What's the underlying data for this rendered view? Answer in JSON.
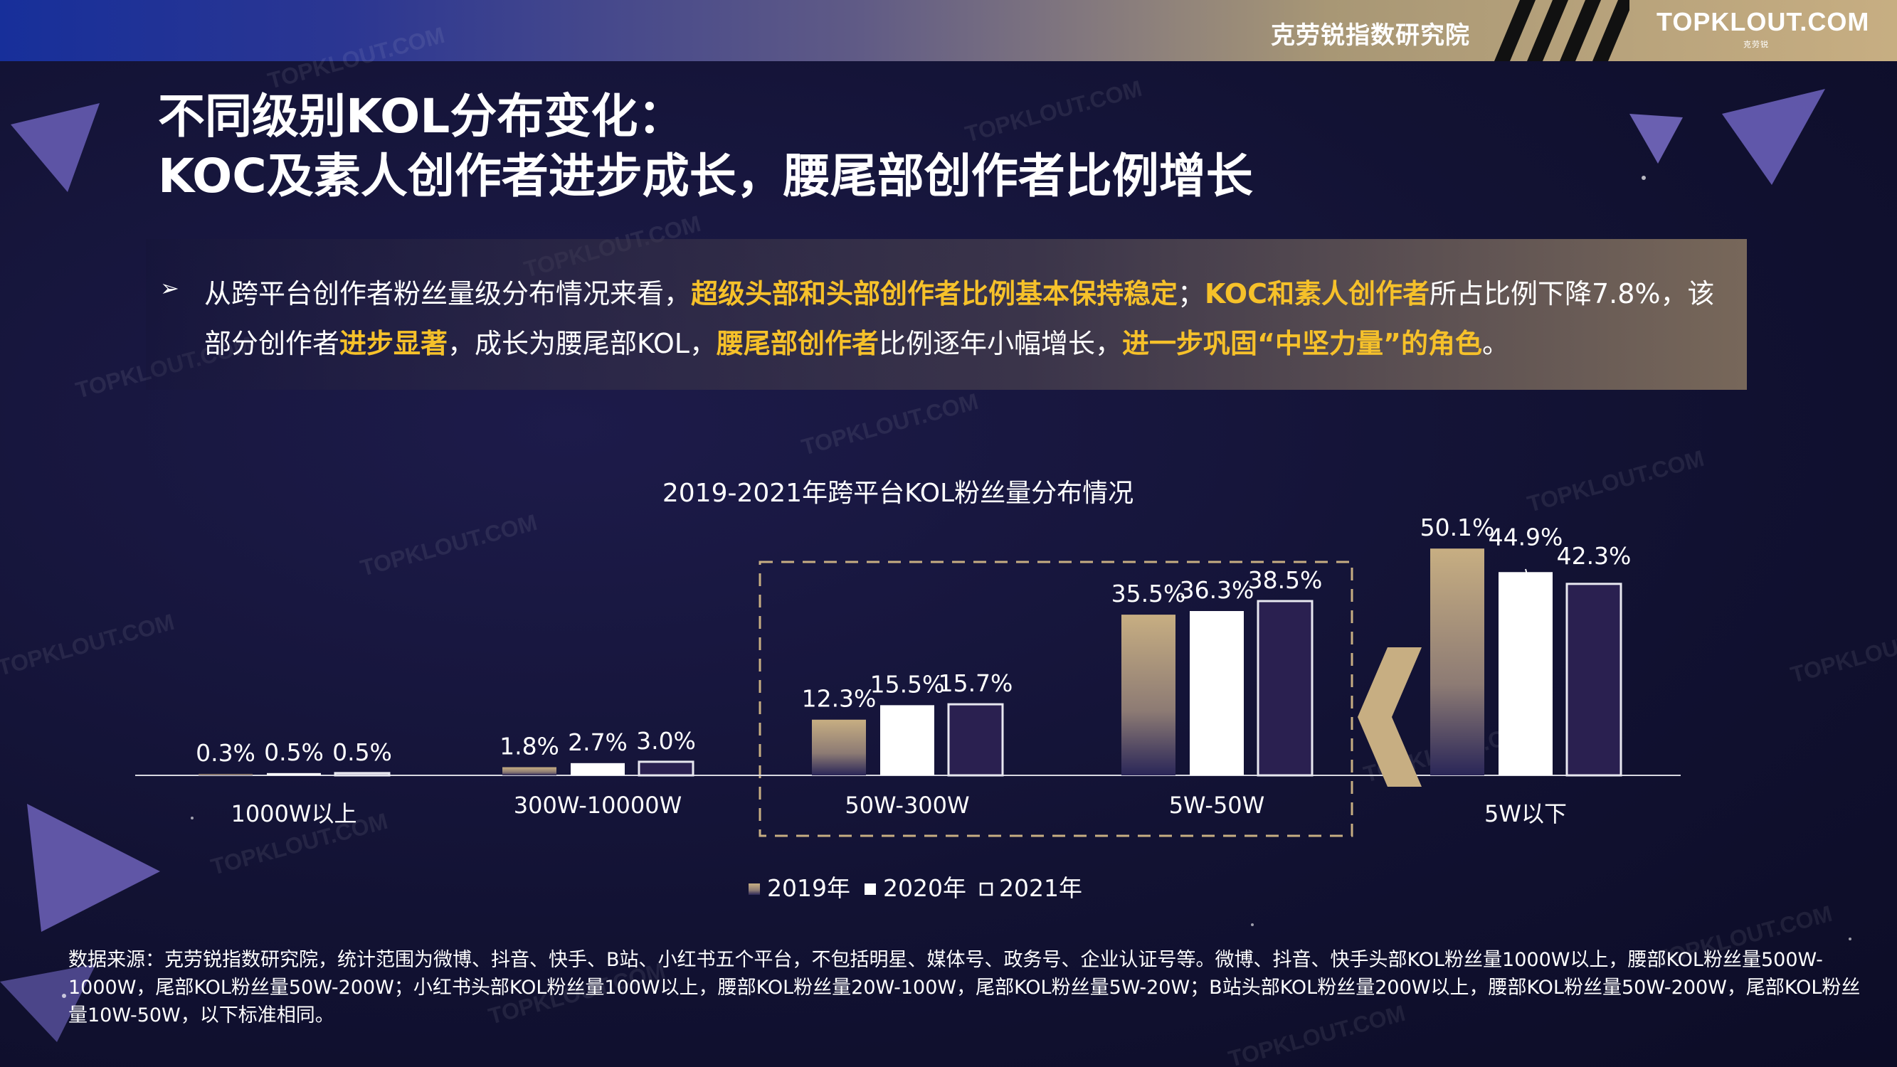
{
  "header": {
    "brand_label": "克劳锐指数研究院",
    "logo_text": "TOPKLOUT.COM",
    "logo_sub": "克劳锐"
  },
  "watermark": "TOPKLOUT.COM",
  "title": {
    "line1": "不同级别KOL分布变化：",
    "line2": "KOC及素人创作者进步成长，腰尾部创作者比例增长"
  },
  "summary": {
    "bullet": "➢",
    "segments": [
      {
        "text": "从跨平台创作者粉丝量级分布情况来看，",
        "hl": false
      },
      {
        "text": "超级头部和头部创作者比例基本保持稳定",
        "hl": true
      },
      {
        "text": "；",
        "hl": false
      },
      {
        "text": "KOC和素人创作者",
        "hl": true
      },
      {
        "text": "所占比例下降7.8%，该部分创作者",
        "hl": false
      },
      {
        "text": "进步显著",
        "hl": true
      },
      {
        "text": "，成长为腰尾部KOL，",
        "hl": false
      },
      {
        "text": "腰尾部创作者",
        "hl": true
      },
      {
        "text": "比例逐年小幅增长，",
        "hl": false
      },
      {
        "text": "进一步巩固“中坚力量”的角色",
        "hl": true
      },
      {
        "text": "。",
        "hl": false
      }
    ]
  },
  "chart_data": {
    "type": "bar",
    "title": "2019-2021年跨平台KOL粉丝量分布情况",
    "categories": [
      "1000W以上",
      "300W-10000W",
      "50W-300W",
      "5W-50W",
      "5W以下"
    ],
    "series": [
      {
        "name": "2019年",
        "values": [
          0.3,
          1.8,
          12.3,
          35.5,
          50.1
        ],
        "color": "#c7ae82"
      },
      {
        "name": "2020年",
        "values": [
          0.5,
          2.7,
          15.5,
          36.3,
          44.9
        ],
        "color": "#ffffff"
      },
      {
        "name": "2021年",
        "values": [
          0.5,
          3.0,
          15.7,
          38.5,
          42.3
        ],
        "color": "#2a2050"
      }
    ],
    "data_labels": [
      [
        "0.3%",
        "0.5%",
        "0.5%"
      ],
      [
        "1.8%",
        "2.7%",
        "3.0%"
      ],
      [
        "12.3%",
        "15.5%",
        "15.7%"
      ],
      [
        "35.5%",
        "36.3%",
        "38.5%"
      ],
      [
        "50.1%",
        "44.9%",
        "42.3%"
      ]
    ],
    "ylim": [
      0,
      55
    ],
    "highlight_categories": [
      "50W-300W",
      "5W-50W"
    ],
    "highlight_color": "#c7ae82",
    "legend_position": "bottom",
    "grid": false,
    "xlabel": "",
    "ylabel": ""
  },
  "source": {
    "text": "数据来源：克劳锐指数研究院，统计范围为微博、抖音、快手、B站、小红书五个平台，不包括明星、媒体号、政务号、企业认证号等。微博、抖音、快手头部KOL粉丝量1000W以上，腰部KOL粉丝量500W-1000W，尾部KOL粉丝量50W-200W；小红书头部KOL粉丝量100W以上，腰部KOL粉丝量20W-100W，尾部KOL粉丝量5W-20W；B站头部KOL粉丝量200W以上，腰部KOL粉丝量50W-200W，尾部KOL粉丝量10W-50W，以下标准相同。"
  }
}
